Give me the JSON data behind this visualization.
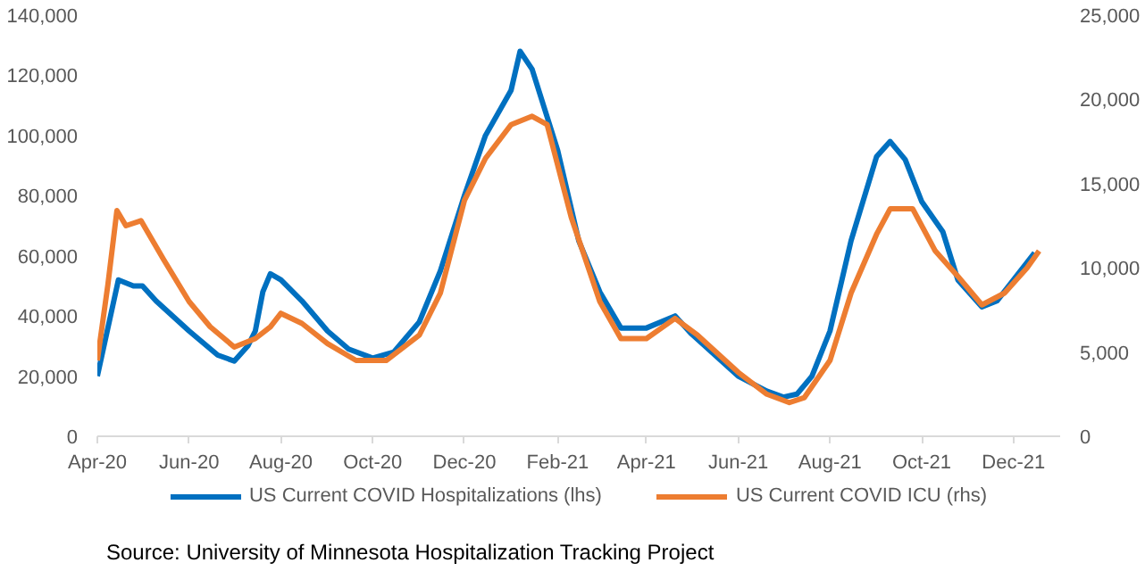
{
  "chart_data": {
    "type": "line",
    "annotations": [
      "Source:  University of Minnesota Hospitalization Tracking Project"
    ],
    "xlim": [
      "2020-04-01",
      "2022-01-01"
    ],
    "xticks": [
      {
        "value": "2020-04-01",
        "label": "Apr-20"
      },
      {
        "value": "2020-06-01",
        "label": "Jun-20"
      },
      {
        "value": "2020-08-01",
        "label": "Aug-20"
      },
      {
        "value": "2020-10-01",
        "label": "Oct-20"
      },
      {
        "value": "2020-12-01",
        "label": "Dec-20"
      },
      {
        "value": "2021-02-01",
        "label": "Feb-21"
      },
      {
        "value": "2021-04-01",
        "label": "Apr-21"
      },
      {
        "value": "2021-06-01",
        "label": "Jun-21"
      },
      {
        "value": "2021-08-01",
        "label": "Aug-21"
      },
      {
        "value": "2021-10-01",
        "label": "Oct-21"
      },
      {
        "value": "2021-12-01",
        "label": "Dec-21"
      }
    ],
    "ylim": [
      0,
      140000
    ],
    "yticks": [
      {
        "value": 0,
        "label": "0"
      },
      {
        "value": 20000,
        "label": "20,000"
      },
      {
        "value": 40000,
        "label": "40,000"
      },
      {
        "value": 60000,
        "label": "60,000"
      },
      {
        "value": 80000,
        "label": "80,000"
      },
      {
        "value": 100000,
        "label": "100,000"
      },
      {
        "value": 120000,
        "label": "120,000"
      },
      {
        "value": 140000,
        "label": "140,000"
      }
    ],
    "y2lim": [
      0,
      25000
    ],
    "y2ticks": [
      {
        "value": 0,
        "label": "0"
      },
      {
        "value": 5000,
        "label": "5,000"
      },
      {
        "value": 10000,
        "label": "10,000"
      },
      {
        "value": 15000,
        "label": "15,000"
      },
      {
        "value": 20000,
        "label": "20,000"
      },
      {
        "value": 25000,
        "label": "25,000"
      }
    ],
    "legend": "bottom",
    "grid": false,
    "marker": "none",
    "line_style": "solid",
    "series": [
      {
        "name": "US Current COVID Hospitalizations (lhs)",
        "color": "#0070c0",
        "x": [
          "2020-04-01",
          "2020-04-15",
          "2020-04-25",
          "2020-05-01",
          "2020-05-10",
          "2020-06-01",
          "2020-06-20",
          "2020-07-01",
          "2020-07-10",
          "2020-07-15",
          "2020-07-20",
          "2020-07-25",
          "2020-08-01",
          "2020-08-15",
          "2020-09-01",
          "2020-09-15",
          "2020-10-01",
          "2020-10-15",
          "2020-11-01",
          "2020-11-15",
          "2020-12-01",
          "2020-12-15",
          "2021-01-01",
          "2021-01-07",
          "2021-01-15",
          "2021-02-01",
          "2021-02-15",
          "2021-03-01",
          "2021-03-15",
          "2021-04-01",
          "2021-04-20",
          "2021-05-01",
          "2021-06-01",
          "2021-06-20",
          "2021-07-01",
          "2021-07-10",
          "2021-07-20",
          "2021-08-01",
          "2021-08-15",
          "2021-09-01",
          "2021-09-10",
          "2021-09-20",
          "2021-10-01",
          "2021-10-15",
          "2021-10-25",
          "2021-11-10",
          "2021-11-20",
          "2021-12-01",
          "2021-12-15"
        ],
        "values": [
          20000,
          52000,
          50000,
          50000,
          45000,
          35000,
          27000,
          25000,
          30000,
          35000,
          48000,
          54000,
          52000,
          45000,
          35000,
          29000,
          26000,
          28000,
          38000,
          55000,
          80000,
          100000,
          115000,
          128000,
          122000,
          95000,
          65000,
          48000,
          36000,
          36000,
          40000,
          34000,
          20000,
          15000,
          13000,
          14000,
          20000,
          35000,
          65000,
          93000,
          98000,
          92000,
          78000,
          68000,
          52000,
          43000,
          45000,
          52000,
          61000
        ]
      },
      {
        "name": "US Current COVID ICU (rhs)",
        "color": "#ed7d31",
        "axis": "y2",
        "x": [
          "2020-04-01",
          "2020-04-08",
          "2020-04-14",
          "2020-04-20",
          "2020-04-30",
          "2020-05-15",
          "2020-06-01",
          "2020-06-15",
          "2020-07-01",
          "2020-07-15",
          "2020-07-25",
          "2020-08-01",
          "2020-08-15",
          "2020-09-01",
          "2020-09-20",
          "2020-10-10",
          "2020-11-01",
          "2020-11-15",
          "2020-12-01",
          "2020-12-15",
          "2021-01-01",
          "2021-01-15",
          "2021-01-25",
          "2021-02-10",
          "2021-03-01",
          "2021-03-15",
          "2021-04-01",
          "2021-04-20",
          "2021-05-05",
          "2021-06-01",
          "2021-06-20",
          "2021-07-05",
          "2021-07-15",
          "2021-08-01",
          "2021-08-15",
          "2021-09-01",
          "2021-09-10",
          "2021-09-25",
          "2021-10-10",
          "2021-10-25",
          "2021-11-10",
          "2021-11-25",
          "2021-12-10",
          "2021-12-18"
        ],
        "values": [
          4500,
          9000,
          13400,
          12500,
          12800,
          10500,
          8000,
          6500,
          5300,
          5800,
          6500,
          7300,
          6700,
          5500,
          4500,
          4500,
          6000,
          8500,
          14000,
          16500,
          18500,
          19000,
          18500,
          13000,
          8000,
          5800,
          5800,
          7000,
          6000,
          3800,
          2500,
          2000,
          2300,
          4500,
          8500,
          12000,
          13500,
          13500,
          11000,
          9500,
          7800,
          8500,
          10000,
          11000
        ]
      }
    ]
  }
}
